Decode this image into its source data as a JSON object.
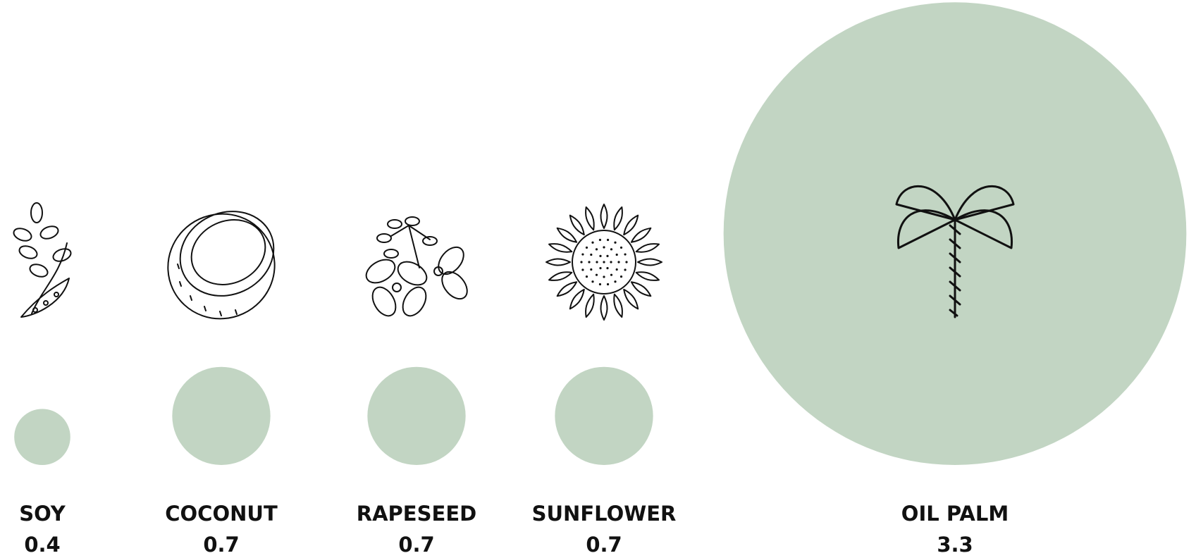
{
  "chart_data": {
    "type": "bubble",
    "categories": [
      "SOY",
      "COCONUT",
      "RAPESEED",
      "SUNFLOWER",
      "OIL PALM"
    ],
    "values": [
      0.4,
      0.7,
      0.7,
      0.7,
      3.3
    ],
    "color": "#c2d5c3"
  }
}
